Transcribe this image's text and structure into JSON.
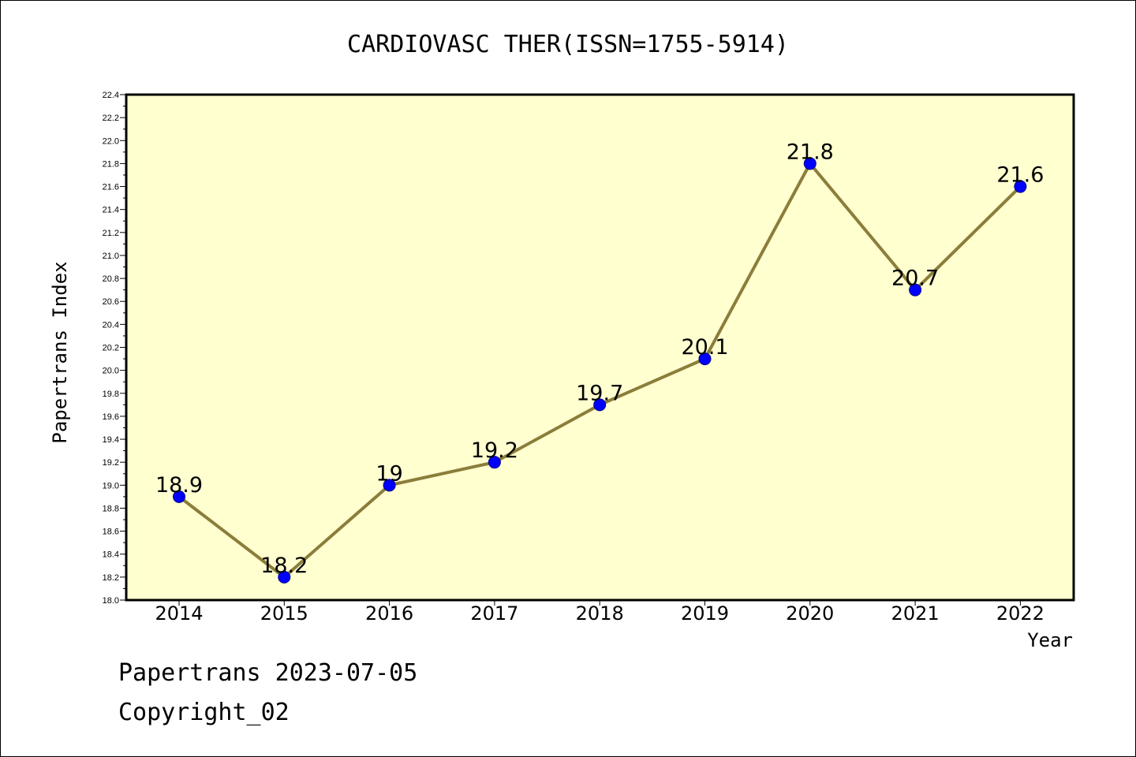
{
  "chart_data": {
    "type": "line",
    "title": "CARDIOVASC THER(ISSN=1755-5914)",
    "xlabel": "Year",
    "ylabel": "Papertrans Index",
    "categories": [
      "2014",
      "2015",
      "2016",
      "2017",
      "2018",
      "2019",
      "2020",
      "2021",
      "2022"
    ],
    "values": [
      18.9,
      18.2,
      19,
      19.2,
      19.7,
      20.1,
      21.8,
      20.7,
      21.6
    ],
    "data_labels": [
      "18.9",
      "18.2",
      "19",
      "19.2",
      "19.7",
      "20.1",
      "21.8",
      "20.7",
      "21.6"
    ],
    "ylim": [
      18.0,
      22.4
    ],
    "yticks": [
      "18.0",
      "18.2",
      "18.4",
      "18.6",
      "18.8",
      "19.0",
      "19.2",
      "19.4",
      "19.6",
      "19.8",
      "20.0",
      "20.2",
      "20.4",
      "20.6",
      "20.8",
      "21.0",
      "21.2",
      "21.4",
      "21.6",
      "21.8",
      "22.0",
      "22.2",
      "22.4"
    ],
    "grid": false,
    "colors": {
      "plot_background": "#ffffd0",
      "line": "#8b7d3a",
      "marker": "#0000ff"
    }
  },
  "footer": {
    "line1": "Papertrans 2023-07-05",
    "line2": "Copyright_02"
  }
}
